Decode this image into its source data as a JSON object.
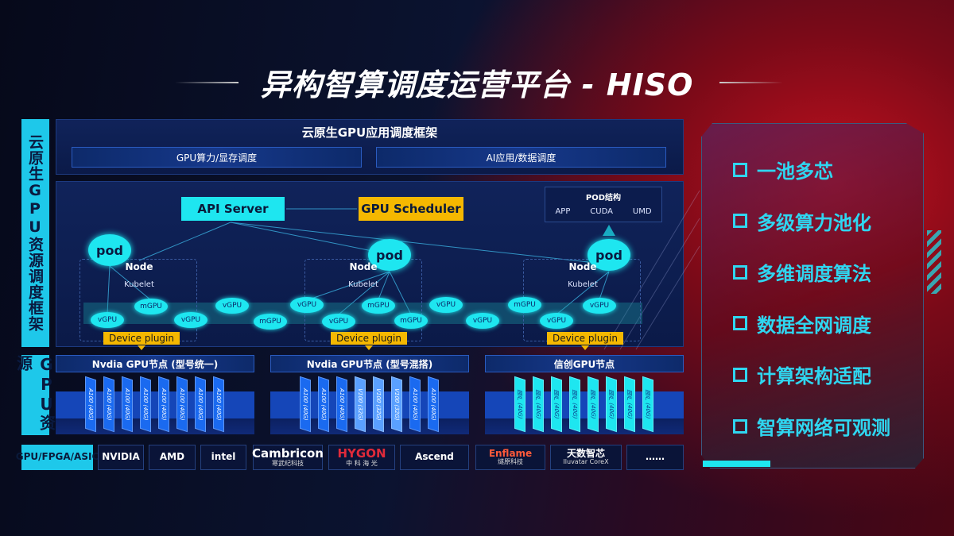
{
  "title": "异构智算调度运营平台 - HISO",
  "left_labels": {
    "framework": "云原生GPU资源调度框架",
    "gpu": "GPU资源",
    "chips": "GPU/FPGA/ASIC"
  },
  "top": {
    "title": "云原生GPU应用调度框架",
    "bars": [
      "GPU算力/显存调度",
      "AI应用/数据调度"
    ]
  },
  "control": {
    "api_server": "API Server",
    "scheduler": "GPU Scheduler"
  },
  "pod_structure": {
    "title": "POD结构",
    "items": [
      "APP",
      "CUDA",
      "UMD"
    ]
  },
  "nodes": [
    {
      "pod": "pod",
      "label": "Node",
      "kubelet": "Kubelet",
      "plugin": "Device plugin"
    },
    {
      "pod": "pod",
      "label": "Node",
      "kubelet": "Kubelet",
      "plugin": "Device plugin"
    },
    {
      "pod": "pod",
      "label": "Node",
      "kubelet": "Kubelet",
      "plugin": "Device plugin"
    }
  ],
  "virtual_gpus": [
    "vGPU",
    "mGPU",
    "vGPU",
    "vGPU",
    "mGPU",
    "vGPU",
    "vGPU",
    "mGPU",
    "mGPU",
    "vGPU",
    "vGPU",
    "mGPU",
    "vGPU",
    "vGPU"
  ],
  "gpu_nodes": [
    {
      "title": "Nvdia GPU节点 (型号统一)",
      "cards": [
        "A100 (40G)",
        "A100 (40G)",
        "A100 (40G)",
        "A100 (40G)",
        "A100 (40G)",
        "A100 (40G)",
        "A100 (40G)",
        "A100 (40G)"
      ],
      "color": "#1a6af0"
    },
    {
      "title": "Nvdia GPU节点 (型号混搭)",
      "cards": [
        "A100 (40G)",
        "A100 (40G)",
        "A100 (40G)",
        "V100 (32G)",
        "V100 (32G)",
        "V100 (32G)",
        "A100 (40G)",
        "A100 (40G)"
      ],
      "color": "#1a6af0"
    },
    {
      "title": "信创GPU节点",
      "cards": [
        "国产 (40G)",
        "国产 (40G)",
        "国产 (40G)",
        "国产 (40G)",
        "国产 (40G)",
        "国产 (40G)",
        "国产 (40G)",
        "国产 (40G)"
      ],
      "color": "#1ee6f0"
    }
  ],
  "vendors": [
    {
      "name": "NVIDIA",
      "sub": ""
    },
    {
      "name": "AMD",
      "sub": ""
    },
    {
      "name": "intel",
      "sub": ""
    },
    {
      "name": "Cambricon",
      "sub": "寒武纪科技"
    },
    {
      "name": "HYGON",
      "sub": "中 科 海 光"
    },
    {
      "name": "Ascend",
      "sub": ""
    },
    {
      "name": "Enflame",
      "sub": "燧原科技"
    },
    {
      "name": "天数智芯",
      "sub": "Iluvatar CoreX"
    },
    {
      "name": "……",
      "sub": ""
    }
  ],
  "features": [
    "一池多芯",
    "多级算力池化",
    "多维调度算法",
    "数据全网调度",
    "计算架构适配",
    "智算网络可观测"
  ]
}
